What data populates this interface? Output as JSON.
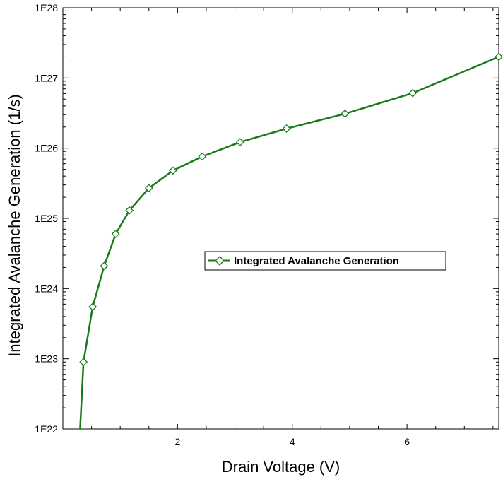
{
  "chart_data": {
    "type": "line",
    "title": "",
    "xlabel": "Drain Voltage (V)",
    "ylabel": "Integrated Avalanche Generation (1/s)",
    "x_scale": "linear",
    "y_scale": "log",
    "xlim": [
      0,
      7.6
    ],
    "ylim": [
      1e+22,
      1e+28
    ],
    "x_ticks": [
      2,
      4,
      6
    ],
    "x_tick_labels": [
      "2",
      "4",
      "6"
    ],
    "y_ticks": [
      1e+22,
      1e+23,
      1e+24,
      1e+25,
      1e+26,
      1e+27,
      1e+28
    ],
    "y_tick_labels": [
      "1E22",
      "1E23",
      "1E24",
      "1E25",
      "1E26",
      "1E27",
      "1E28"
    ],
    "grid": false,
    "legend_position": "center-right",
    "series": [
      {
        "name": "Integrated Avalanche Generation",
        "color": "#1a7a1a",
        "marker": "diamond",
        "x": [
          0.36,
          0.52,
          0.72,
          0.92,
          1.16,
          1.5,
          1.92,
          2.43,
          3.09,
          3.9,
          4.92,
          6.1,
          7.6
        ],
        "y": [
          9e+22,
          5.5e+23,
          2.1e+24,
          6e+24,
          1.3e+25,
          2.7e+25,
          4.8e+25,
          7.6e+25,
          1.22e+26,
          1.9e+26,
          3.1e+26,
          6.1e+26,
          2e+27
        ]
      }
    ],
    "line_start": {
      "x": 0.3,
      "y": 1e+22
    }
  }
}
